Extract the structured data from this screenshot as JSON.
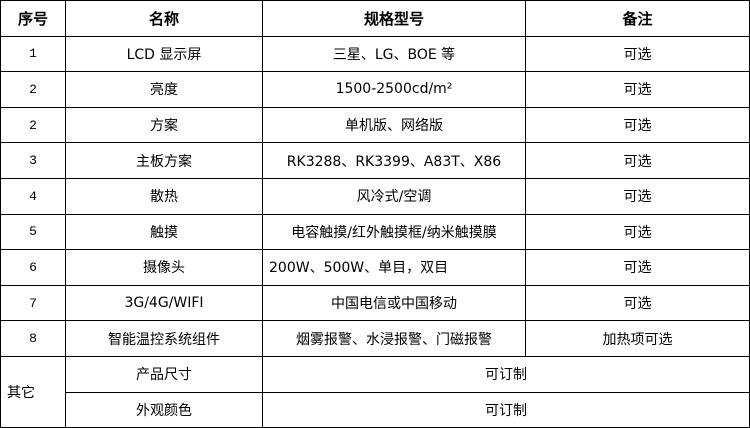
{
  "headers": [
    "序号",
    "名称",
    "规格型号",
    "备注"
  ],
  "rows": [
    {
      "no": "1",
      "name": "LCD 显示屏",
      "spec": "三星、LG、BOE 等",
      "note": "可选"
    },
    {
      "no": "2",
      "name": "亮度",
      "spec": "1500-2500cd/m²",
      "note": "可选"
    },
    {
      "no": "2",
      "name": "方案",
      "spec": "单机版、网络版",
      "note": "可选"
    },
    {
      "no": "3",
      "name": "主板方案",
      "spec": "RK3288、RK3399、A83T、X86",
      "note": "可选"
    },
    {
      "no": "4",
      "name": "散热",
      "spec": "风冷式/空调",
      "note": "可选"
    },
    {
      "no": "5",
      "name": "触摸",
      "spec": "电容触摸/红外触摸框/纳米触摸膜",
      "note": "可选"
    },
    {
      "no": "6",
      "name": "摄像头",
      "spec": "200W、500W、单目，双目",
      "note": "可选"
    },
    {
      "no": "7",
      "name": "3G/4G/WIFI",
      "spec": "中国电信或中国移动",
      "note": "可选"
    },
    {
      "no": "8",
      "name": "智能温控系统组件",
      "spec": "烟雾报警、水浸报警、门磁报警",
      "note": "加热项可选"
    }
  ],
  "other": {
    "label": "其它",
    "rows": [
      {
        "name": "产品尺寸",
        "value": "可订制"
      },
      {
        "name": "外观颜色",
        "value": "可订制"
      }
    ]
  }
}
